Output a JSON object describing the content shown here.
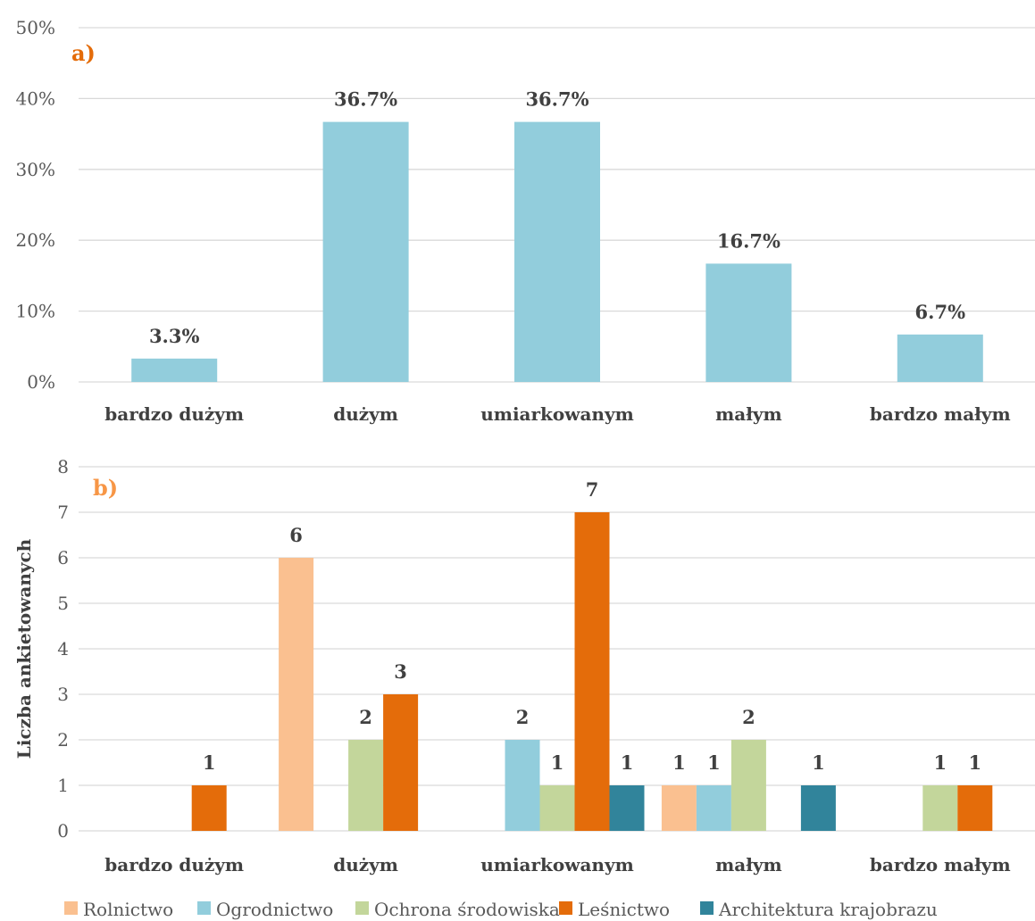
{
  "chart_data": [
    {
      "type": "bar",
      "panel_label": "a)",
      "panel_label_color": "#E46C0A",
      "categories": [
        "bardzo dużym",
        "dużym",
        "umiarkowanym",
        "małym",
        "bardzo małym"
      ],
      "series": [
        {
          "values": [
            3.3,
            36.7,
            36.7,
            16.7,
            6.7
          ],
          "color": "#92CDDC"
        }
      ],
      "data_labels": [
        "3.3%",
        "36.7%",
        "36.7%",
        "16.7%",
        "6.7%"
      ],
      "yticks": [
        "0%",
        "10%",
        "20%",
        "30%",
        "40%",
        "50%"
      ],
      "ylim": [
        0,
        50
      ],
      "grid": true
    },
    {
      "type": "bar",
      "panel_label": "b)",
      "panel_label_color": "#F79646",
      "ylabel": "Liczba ankietowanych",
      "categories": [
        "bardzo dużym",
        "dużym",
        "umiarkowanym",
        "małym",
        "bardzo małym"
      ],
      "series": [
        {
          "name": "Rolnictwo",
          "color": "#FAC090",
          "values": [
            0,
            6,
            0,
            1,
            0
          ]
        },
        {
          "name": "Ogrodnictwo",
          "color": "#92CDDC",
          "values": [
            0,
            0,
            2,
            1,
            0
          ]
        },
        {
          "name": "Ochrona środowiska",
          "color": "#C3D69B",
          "values": [
            0,
            2,
            1,
            2,
            1
          ]
        },
        {
          "name": "Leśnictwo",
          "color": "#E46C0A",
          "values": [
            1,
            3,
            7,
            0,
            1
          ]
        },
        {
          "name": "Architektura krajobrazu",
          "color": "#31849B",
          "values": [
            0,
            0,
            1,
            1,
            0
          ]
        }
      ],
      "yticks": [
        "0",
        "1",
        "2",
        "3",
        "4",
        "5",
        "6",
        "7",
        "8"
      ],
      "ylim": [
        0,
        8
      ],
      "grid": true,
      "legend_position": "bottom"
    }
  ]
}
